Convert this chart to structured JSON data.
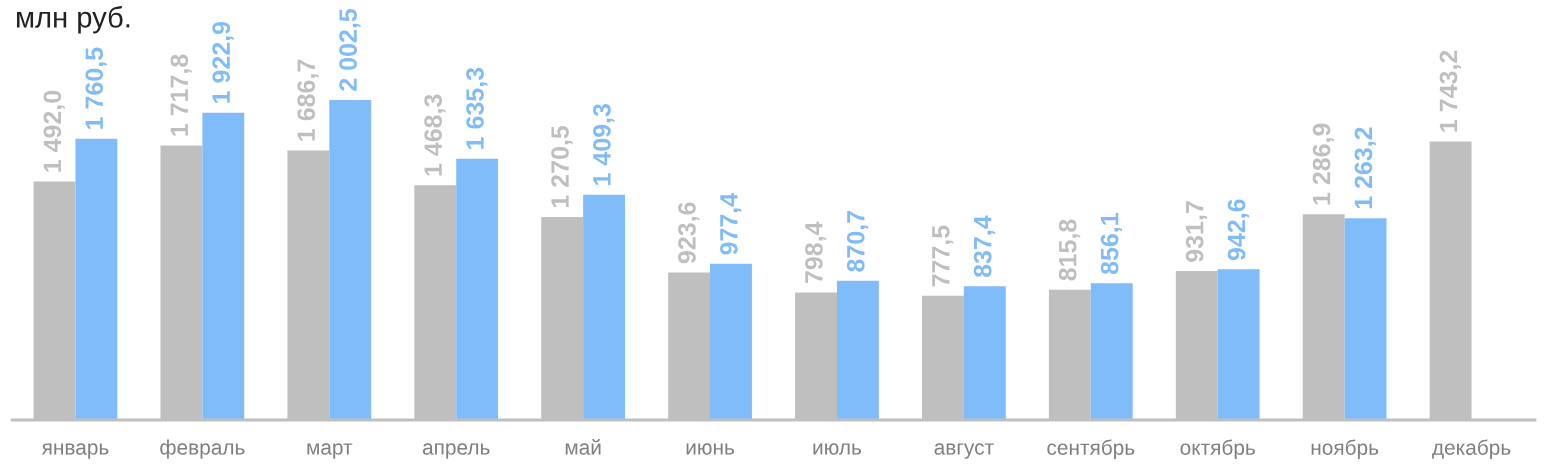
{
  "chart_data": {
    "type": "bar",
    "title": "млн руб.",
    "categories": [
      "январь",
      "февраль",
      "март",
      "апрель",
      "май",
      "июнь",
      "июль",
      "август",
      "сентябрь",
      "октябрь",
      "ноябрь",
      "декабрь"
    ],
    "series": [
      {
        "color": "#bfbfbf",
        "values": [
          1492.0,
          1717.8,
          1686.7,
          1468.3,
          1270.5,
          923.6,
          798.4,
          777.5,
          815.8,
          931.7,
          1286.9,
          1743.2
        ],
        "value_labels": [
          "1 492,0",
          "1 717,8",
          "1 686,7",
          "1 468,3",
          "1 270,5",
          "923,6",
          "798,4",
          "777,5",
          "815,8",
          "931,7",
          "1 286,9",
          "1 743,2"
        ]
      },
      {
        "color": "#80bbfa",
        "values": [
          1760.5,
          1922.9,
          2002.5,
          1635.3,
          1409.3,
          977.4,
          870.7,
          837.4,
          856.1,
          942.6,
          1263.2,
          null
        ],
        "value_labels": [
          "1 760,5",
          "1 922,9",
          "2 002,5",
          "1 635,3",
          "1 409,3",
          "977,4",
          "870,7",
          "837,4",
          "856,1",
          "942,6",
          "1 263,2",
          null
        ]
      }
    ],
    "tick_labels": "x",
    "grid": false,
    "legend": false
  }
}
